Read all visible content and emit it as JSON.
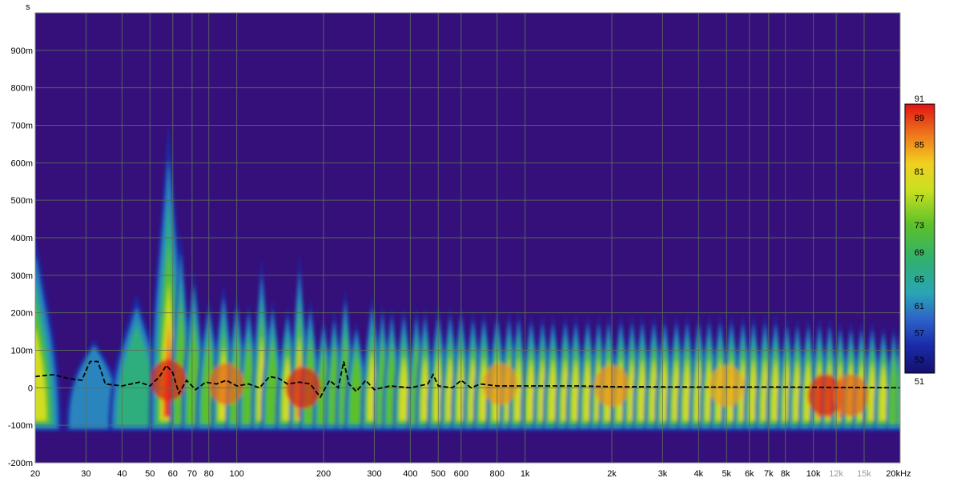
{
  "chart_data": {
    "type": "heatmap",
    "title": "",
    "x_axis": {
      "scale": "log",
      "range": [
        20,
        20000
      ],
      "unit_label": "Hz",
      "ticks": [
        {
          "value": 20,
          "label": "20"
        },
        {
          "value": 30,
          "label": "30"
        },
        {
          "value": 40,
          "label": "40"
        },
        {
          "value": 50,
          "label": "50"
        },
        {
          "value": 60,
          "label": "60"
        },
        {
          "value": 70,
          "label": "70"
        },
        {
          "value": 80,
          "label": "80"
        },
        {
          "value": 100,
          "label": "100"
        },
        {
          "value": 200,
          "label": "200"
        },
        {
          "value": 300,
          "label": "300"
        },
        {
          "value": 400,
          "label": "400"
        },
        {
          "value": 500,
          "label": "500"
        },
        {
          "value": 600,
          "label": "600"
        },
        {
          "value": 800,
          "label": "800"
        },
        {
          "value": 1000,
          "label": "1k"
        },
        {
          "value": 2000,
          "label": "2k"
        },
        {
          "value": 3000,
          "label": "3k"
        },
        {
          "value": 4000,
          "label": "4k"
        },
        {
          "value": 5000,
          "label": "5k"
        },
        {
          "value": 6000,
          "label": "6k"
        },
        {
          "value": 7000,
          "label": "7k"
        },
        {
          "value": 8000,
          "label": "8k"
        },
        {
          "value": 10000,
          "label": "10k"
        },
        {
          "value": 12000,
          "label": "12k",
          "dim": true
        },
        {
          "value": 15000,
          "label": "15k",
          "dim": true
        },
        {
          "value": 20000,
          "label": "20kHz"
        }
      ]
    },
    "y_axis": {
      "unit_label": "s",
      "range": [
        -0.2,
        1.0
      ],
      "ticks": [
        {
          "value": 0.9,
          "label": "900m"
        },
        {
          "value": 0.8,
          "label": "800m"
        },
        {
          "value": 0.7,
          "label": "700m"
        },
        {
          "value": 0.6,
          "label": "600m"
        },
        {
          "value": 0.5,
          "label": "500m"
        },
        {
          "value": 0.4,
          "label": "400m"
        },
        {
          "value": 0.3,
          "label": "300m"
        },
        {
          "value": 0.2,
          "label": "200m"
        },
        {
          "value": 0.1,
          "label": "100m"
        },
        {
          "value": 0.0,
          "label": "0"
        },
        {
          "value": -0.1,
          "label": "-100m"
        },
        {
          "value": -0.2,
          "label": "-200m"
        }
      ]
    },
    "grid": true,
    "colorbar": {
      "placement": "right",
      "range": [
        51,
        91
      ],
      "top_label": "91",
      "bottom_label": "51",
      "tick_labels": [
        "89",
        "85",
        "81",
        "77",
        "73",
        "69",
        "65",
        "61",
        "57",
        "53"
      ],
      "tick_values": [
        89,
        85,
        81,
        77,
        73,
        69,
        65,
        61,
        57,
        53
      ]
    },
    "colors": {
      "background": "#35107a",
      "grid": "#5d6f5a",
      "peak_trace": "#000000"
    },
    "peak_trace": {
      "style": "dashed",
      "points": [
        [
          20,
          0.03
        ],
        [
          23,
          0.035
        ],
        [
          26,
          0.025
        ],
        [
          29,
          0.02
        ],
        [
          31,
          0.07
        ],
        [
          33,
          0.07
        ],
        [
          35,
          0.01
        ],
        [
          40,
          0.005
        ],
        [
          46,
          0.015
        ],
        [
          50,
          0.005
        ],
        [
          54,
          0.03
        ],
        [
          57,
          0.06
        ],
        [
          60,
          0.04
        ],
        [
          63,
          -0.015
        ],
        [
          67,
          0.02
        ],
        [
          72,
          -0.005
        ],
        [
          78,
          0.015
        ],
        [
          85,
          0.01
        ],
        [
          92,
          0.02
        ],
        [
          100,
          0.005
        ],
        [
          110,
          0.01
        ],
        [
          120,
          0.0
        ],
        [
          130,
          0.03
        ],
        [
          140,
          0.025
        ],
        [
          150,
          0.01
        ],
        [
          165,
          0.015
        ],
        [
          180,
          0.01
        ],
        [
          195,
          -0.025
        ],
        [
          210,
          0.02
        ],
        [
          225,
          0.0
        ],
        [
          235,
          0.07
        ],
        [
          245,
          0.01
        ],
        [
          260,
          -0.01
        ],
        [
          280,
          0.02
        ],
        [
          300,
          -0.005
        ],
        [
          340,
          0.005
        ],
        [
          400,
          0.0
        ],
        [
          460,
          0.01
        ],
        [
          480,
          0.035
        ],
        [
          500,
          0.005
        ],
        [
          560,
          0.0
        ],
        [
          600,
          0.02
        ],
        [
          650,
          0.0
        ],
        [
          700,
          0.01
        ],
        [
          800,
          0.005
        ],
        [
          1000,
          0.005
        ],
        [
          1500,
          0.005
        ],
        [
          2000,
          0.003
        ],
        [
          4000,
          0.002
        ],
        [
          8000,
          0.002
        ],
        [
          12000,
          0.001
        ],
        [
          20000,
          0.0
        ]
      ]
    },
    "ridges": [
      [
        20,
        0.41,
        84
      ],
      [
        32,
        0.13,
        64
      ],
      [
        45,
        0.25,
        74
      ],
      [
        58,
        0.71,
        91
      ],
      [
        64,
        0.42,
        80
      ],
      [
        71,
        0.32,
        79
      ],
      [
        80,
        0.24,
        76
      ],
      [
        90,
        0.28,
        84
      ],
      [
        100,
        0.25,
        80
      ],
      [
        110,
        0.23,
        78
      ],
      [
        122,
        0.35,
        82
      ],
      [
        133,
        0.24,
        78
      ],
      [
        150,
        0.22,
        82
      ],
      [
        165,
        0.36,
        90
      ],
      [
        180,
        0.24,
        80
      ],
      [
        200,
        0.19,
        76
      ],
      [
        218,
        0.21,
        78
      ],
      [
        238,
        0.27,
        80
      ],
      [
        260,
        0.18,
        76
      ],
      [
        295,
        0.25,
        82
      ],
      [
        320,
        0.23,
        80
      ],
      [
        345,
        0.22,
        80
      ],
      [
        380,
        0.22,
        82
      ],
      [
        420,
        0.22,
        80
      ],
      [
        450,
        0.22,
        81
      ],
      [
        500,
        0.22,
        82
      ],
      [
        550,
        0.22,
        82
      ],
      [
        600,
        0.22,
        83
      ],
      [
        660,
        0.21,
        82
      ],
      [
        720,
        0.21,
        82
      ],
      [
        800,
        0.21,
        83
      ],
      [
        880,
        0.21,
        84
      ],
      [
        950,
        0.21,
        84
      ],
      [
        1050,
        0.2,
        83
      ],
      [
        1150,
        0.2,
        82
      ],
      [
        1250,
        0.2,
        82
      ],
      [
        1380,
        0.2,
        82
      ],
      [
        1500,
        0.2,
        82
      ],
      [
        1650,
        0.2,
        82
      ],
      [
        1800,
        0.2,
        84
      ],
      [
        1950,
        0.2,
        83
      ],
      [
        2150,
        0.2,
        82
      ],
      [
        2350,
        0.2,
        82
      ],
      [
        2550,
        0.2,
        82
      ],
      [
        2800,
        0.2,
        83
      ],
      [
        3050,
        0.2,
        82
      ],
      [
        3350,
        0.2,
        82
      ],
      [
        3650,
        0.2,
        82
      ],
      [
        4000,
        0.2,
        82
      ],
      [
        4350,
        0.2,
        82
      ],
      [
        4750,
        0.2,
        83
      ],
      [
        5200,
        0.2,
        82
      ],
      [
        5700,
        0.2,
        83
      ],
      [
        6200,
        0.2,
        83
      ],
      [
        6800,
        0.2,
        84
      ],
      [
        7400,
        0.2,
        84
      ],
      [
        8100,
        0.19,
        84
      ],
      [
        8800,
        0.19,
        84
      ],
      [
        9600,
        0.19,
        86
      ],
      [
        10500,
        0.19,
        88
      ],
      [
        11400,
        0.19,
        88
      ],
      [
        12400,
        0.18,
        87
      ],
      [
        13500,
        0.18,
        85
      ],
      [
        14700,
        0.18,
        83
      ],
      [
        16000,
        0.18,
        82
      ],
      [
        17500,
        0.17,
        81
      ],
      [
        19000,
        0.17,
        80
      ],
      [
        20000,
        0.17,
        79
      ]
    ],
    "hotspots": [
      [
        58,
        0.02,
        90
      ],
      [
        92,
        0.01,
        87
      ],
      [
        170,
        0.0,
        90
      ],
      [
        820,
        0.01,
        85
      ],
      [
        2000,
        0.005,
        85
      ],
      [
        5000,
        0.005,
        84
      ],
      [
        11000,
        -0.02,
        90
      ],
      [
        13500,
        -0.02,
        87
      ]
    ]
  }
}
